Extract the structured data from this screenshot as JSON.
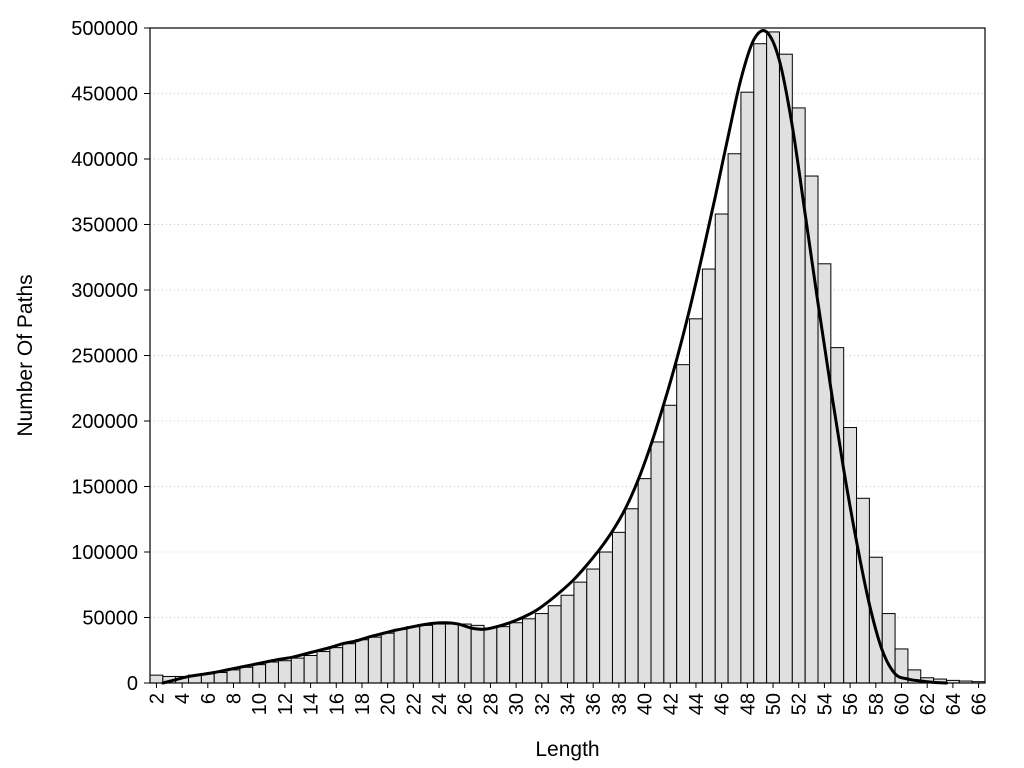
{
  "chart_data": {
    "type": "bar",
    "title": "",
    "xlabel": "Length",
    "ylabel": "Number Of Paths",
    "x": [
      2,
      3,
      4,
      5,
      6,
      7,
      8,
      9,
      10,
      11,
      12,
      13,
      14,
      15,
      16,
      17,
      18,
      19,
      20,
      21,
      22,
      23,
      24,
      25,
      26,
      27,
      28,
      29,
      30,
      31,
      32,
      33,
      34,
      35,
      36,
      37,
      38,
      39,
      40,
      41,
      42,
      43,
      44,
      45,
      46,
      47,
      48,
      49,
      50,
      51,
      52,
      53,
      54,
      55,
      56,
      57,
      58,
      59,
      60,
      61,
      62,
      63,
      64,
      65,
      66
    ],
    "values": [
      6000,
      5000,
      5000,
      6000,
      7000,
      8000,
      10000,
      12000,
      14000,
      16000,
      17000,
      19000,
      21000,
      24000,
      27000,
      30000,
      33000,
      35000,
      38000,
      41000,
      43000,
      44000,
      45000,
      45000,
      45000,
      44000,
      42000,
      43000,
      46000,
      49000,
      53000,
      59000,
      67000,
      77000,
      87000,
      100000,
      115000,
      133000,
      156000,
      184000,
      212000,
      243000,
      278000,
      316000,
      358000,
      404000,
      451000,
      488000,
      497000,
      480000,
      439000,
      387000,
      320000,
      256000,
      195000,
      141000,
      96000,
      53000,
      26000,
      10000,
      4000,
      3000,
      2000,
      1500,
      1000
    ],
    "trend": [
      0,
      2500,
      5000,
      6500,
      8000,
      10000,
      12000,
      14000,
      16000,
      18000,
      19500,
      22000,
      24500,
      27000,
      30000,
      32000,
      35000,
      37500,
      40000,
      42000,
      44000,
      45500,
      46000,
      45000,
      42000,
      41000,
      43000,
      46000,
      50000,
      55000,
      62000,
      70000,
      79000,
      90000,
      102000,
      116000,
      133000,
      155000,
      182000,
      213000,
      247000,
      285000,
      327000,
      371000,
      417000,
      461000,
      491000,
      497000,
      475000,
      425000,
      358000,
      290000,
      225000,
      163000,
      108000,
      60000,
      25000,
      7000,
      3000,
      1500,
      500,
      0
    ],
    "trend_x_start": 3,
    "xticks": [
      2,
      4,
      6,
      8,
      10,
      12,
      14,
      16,
      18,
      20,
      22,
      24,
      26,
      28,
      30,
      32,
      34,
      36,
      38,
      40,
      42,
      44,
      46,
      48,
      50,
      52,
      54,
      56,
      58,
      60,
      62,
      64,
      66
    ],
    "yticks": [
      0,
      50000,
      100000,
      150000,
      200000,
      250000,
      300000,
      350000,
      400000,
      450000,
      500000
    ],
    "xlim": [
      2,
      66
    ],
    "ylim": [
      0,
      500000
    ],
    "grid": "horizontal-dotted",
    "colors": {
      "bar_fill": "#e0e0e0",
      "bar_stroke": "#000000",
      "curve": "#000000"
    }
  }
}
